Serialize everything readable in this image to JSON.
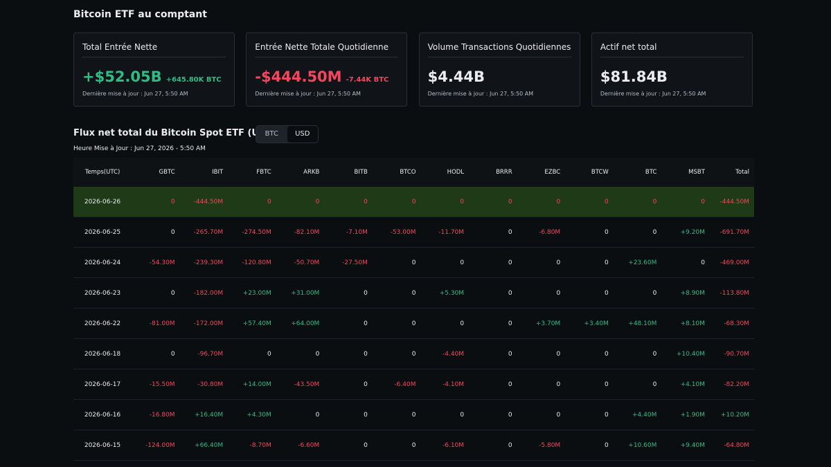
{
  "header": {
    "title": "Bitcoin ETF au comptant"
  },
  "cards": [
    {
      "label": "Total Entrée Nette",
      "value": "+$52.05B",
      "sub": "+645.80K BTC",
      "updated": "Dernière mise à jour : Jun 27, 5:50 AM"
    },
    {
      "label": "Entrée Nette Totale Quotidienne",
      "value": "-$444.50M",
      "sub": "-7.44K BTC",
      "updated": "Dernière mise à jour : Jun 27, 5:50 AM"
    },
    {
      "label": "Volume Transactions Quotidiennes",
      "value": "$4.44B",
      "updated": "Dernière mise à jour : Jun 27, 5:50 AM"
    },
    {
      "label": "Actif net total",
      "value": "$81.84B",
      "updated": "Dernière mise à jour : Jun 27, 5:50 AM"
    }
  ],
  "section": {
    "title": "Flux net total du Bitcoin Spot ETF (USD)",
    "toggle": [
      "BTC",
      "USD"
    ],
    "updated": "Heure Mise à Jour : Jun 27, 2026 - 5:50 AM"
  },
  "table": {
    "columns": [
      "Temps(UTC)",
      "GBTC",
      "IBIT",
      "FBTC",
      "ARKB",
      "BITB",
      "BTCO",
      "HODL",
      "BRRR",
      "EZBC",
      "BTCW",
      "BTC",
      "MSBT",
      "Total"
    ],
    "rows": [
      [
        "2026-06-26",
        "0",
        "-444.50M",
        "0",
        "0",
        "0",
        "0",
        "0",
        "0",
        "0",
        "0",
        "0",
        "0",
        "-444.50M"
      ],
      [
        "2026-06-25",
        "0",
        "-265.70M",
        "-274.50M",
        "-82.10M",
        "-7.10M",
        "-53.00M",
        "-11.70M",
        "0",
        "-6.80M",
        "0",
        "0",
        "+9.20M",
        "-691.70M"
      ],
      [
        "2026-06-24",
        "-54.30M",
        "-239.30M",
        "-120.80M",
        "-50.70M",
        "-27.50M",
        "0",
        "0",
        "0",
        "0",
        "0",
        "+23.60M",
        "0",
        "-469.00M"
      ],
      [
        "2026-06-23",
        "0",
        "-182.00M",
        "+23.00M",
        "+31.00M",
        "0",
        "0",
        "+5.30M",
        "0",
        "0",
        "0",
        "0",
        "+8.90M",
        "-113.80M"
      ],
      [
        "2026-06-22",
        "-81.00M",
        "-172.00M",
        "+57.40M",
        "+64.00M",
        "0",
        "0",
        "0",
        "0",
        "+3.70M",
        "+3.40M",
        "+48.10M",
        "+8.10M",
        "-68.30M"
      ],
      [
        "2026-06-18",
        "0",
        "-96.70M",
        "0",
        "0",
        "0",
        "0",
        "-4.40M",
        "0",
        "0",
        "0",
        "0",
        "+10.40M",
        "-90.70M"
      ],
      [
        "2026-06-17",
        "-15.50M",
        "-30.80M",
        "+14.00M",
        "-43.50M",
        "0",
        "-6.40M",
        "-4.10M",
        "0",
        "0",
        "0",
        "0",
        "+4.10M",
        "-82.20M"
      ],
      [
        "2026-06-16",
        "-16.80M",
        "+16.40M",
        "+4.30M",
        "0",
        "0",
        "0",
        "0",
        "0",
        "0",
        "0",
        "+4.40M",
        "+1.90M",
        "+10.20M"
      ],
      [
        "2026-06-15",
        "-124.00M",
        "+66.40M",
        "-8.70M",
        "-6.60M",
        "0",
        "0",
        "-6.10M",
        "0",
        "-5.80M",
        "0",
        "+10.60M",
        "+9.40M",
        "-64.80M"
      ]
    ]
  }
}
